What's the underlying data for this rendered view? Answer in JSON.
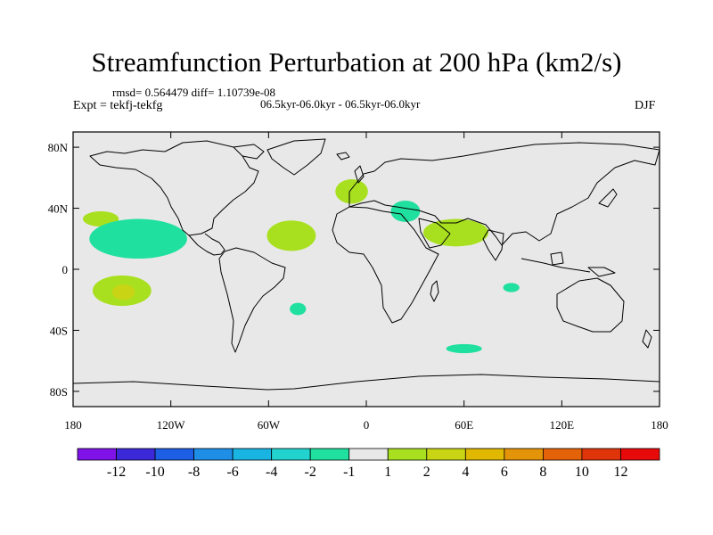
{
  "figure": {
    "title": "Streamfunction Perturbation at 200 hPa (km2/s)",
    "stats": "rmsd= 0.564479 diff= 1.10739e-08",
    "period": "06.5kyr-06.0kyr - 06.5kyr-06.0kyr",
    "experiment": "Expt = tekfj-tekfg",
    "season": "DJF"
  },
  "chart_data": {
    "type": "heatmap",
    "title": "Streamfunction Perturbation at 200 hPa (km2/s)",
    "projection": "cylindrical-equidistant",
    "xlabel": "",
    "ylabel": "",
    "xlim": [
      -180,
      180
    ],
    "ylim": [
      -90,
      90
    ],
    "x_ticks": [
      {
        "value": -180,
        "label": "180"
      },
      {
        "value": -120,
        "label": "120W"
      },
      {
        "value": -60,
        "label": "60W"
      },
      {
        "value": 0,
        "label": "0"
      },
      {
        "value": 60,
        "label": "60E"
      },
      {
        "value": 120,
        "label": "120E"
      },
      {
        "value": 180,
        "label": "180"
      }
    ],
    "y_ticks": [
      {
        "value": 80,
        "label": "80N"
      },
      {
        "value": 40,
        "label": "40N"
      },
      {
        "value": 0,
        "label": "0"
      },
      {
        "value": -40,
        "label": "40S"
      },
      {
        "value": -80,
        "label": "80S"
      }
    ],
    "background_color": "#e8e8e8",
    "colorbar": {
      "bins": [
        {
          "color": "#7f12e8"
        },
        {
          "color": "#3b28d8"
        },
        {
          "color": "#1c5ee4"
        },
        {
          "color": "#1e8ee6"
        },
        {
          "color": "#19b4e2"
        },
        {
          "color": "#22d2cf"
        },
        {
          "color": "#20e0a0"
        },
        {
          "color": "#e8e8e8"
        },
        {
          "color": "#a8e020"
        },
        {
          "color": "#c8d414"
        },
        {
          "color": "#e0b800"
        },
        {
          "color": "#e49408"
        },
        {
          "color": "#e46208"
        },
        {
          "color": "#e0340a"
        },
        {
          "color": "#e80a0a"
        }
      ],
      "boundaries": [
        {
          "value": -12,
          "label": "-12"
        },
        {
          "value": -10,
          "label": "-10"
        },
        {
          "value": -8,
          "label": "-8"
        },
        {
          "value": -6,
          "label": "-6"
        },
        {
          "value": -4,
          "label": "-4"
        },
        {
          "value": -2,
          "label": "-2"
        },
        {
          "value": -1,
          "label": "-1"
        },
        {
          "value": 1,
          "label": "1"
        },
        {
          "value": 2,
          "label": "2"
        },
        {
          "value": 4,
          "label": "4"
        },
        {
          "value": 6,
          "label": "6"
        },
        {
          "value": 8,
          "label": "8"
        },
        {
          "value": 10,
          "label": "10"
        },
        {
          "value": 12,
          "label": "12"
        }
      ]
    },
    "anomalies": [
      {
        "name": "anomaly-n-pacific-west",
        "lon": -163,
        "lat": 33,
        "rlon": 11,
        "rlat": 5,
        "value": 1.5,
        "color": "#a8e020"
      },
      {
        "name": "anomaly-e-pacific-band",
        "lon": -140,
        "lat": 20,
        "rlon": 30,
        "rlat": 13,
        "value": -1.5,
        "color": "#20e0a0"
      },
      {
        "name": "anomaly-n-atlantic-tropical",
        "lon": -46,
        "lat": 22,
        "rlon": 15,
        "rlat": 10,
        "value": 1.5,
        "color": "#a8e020"
      },
      {
        "name": "anomaly-north-atlantic",
        "lon": -9,
        "lat": 51,
        "rlon": 10,
        "rlat": 8,
        "value": 1.5,
        "color": "#a8e020"
      },
      {
        "name": "anomaly-mediterranean",
        "lon": 24,
        "lat": 38,
        "rlon": 9,
        "rlat": 7,
        "value": -1.5,
        "color": "#20e0a0"
      },
      {
        "name": "anomaly-arabia",
        "lon": 55,
        "lat": 24,
        "rlon": 20,
        "rlat": 9,
        "value": 1.5,
        "color": "#a8e020"
      },
      {
        "name": "anomaly-s-pacific-outer",
        "lon": -150,
        "lat": -14,
        "rlon": 18,
        "rlat": 10,
        "value": 1.5,
        "color": "#a8e020"
      },
      {
        "name": "anomaly-s-pacific-inner",
        "lon": -149,
        "lat": -15,
        "rlon": 7,
        "rlat": 5,
        "value": 2.5,
        "color": "#c8d414"
      },
      {
        "name": "anomaly-south-atlantic",
        "lon": -42,
        "lat": -26,
        "rlon": 5,
        "rlat": 4,
        "value": -1.5,
        "color": "#20e0a0"
      },
      {
        "name": "anomaly-indian-ocean",
        "lon": 89,
        "lat": -12,
        "rlon": 5,
        "rlat": 3,
        "value": -1.5,
        "color": "#20e0a0"
      },
      {
        "name": "anomaly-southern-indian",
        "lon": 60,
        "lat": -52,
        "rlon": 11,
        "rlat": 3,
        "value": -1.5,
        "color": "#20e0a0"
      }
    ]
  }
}
